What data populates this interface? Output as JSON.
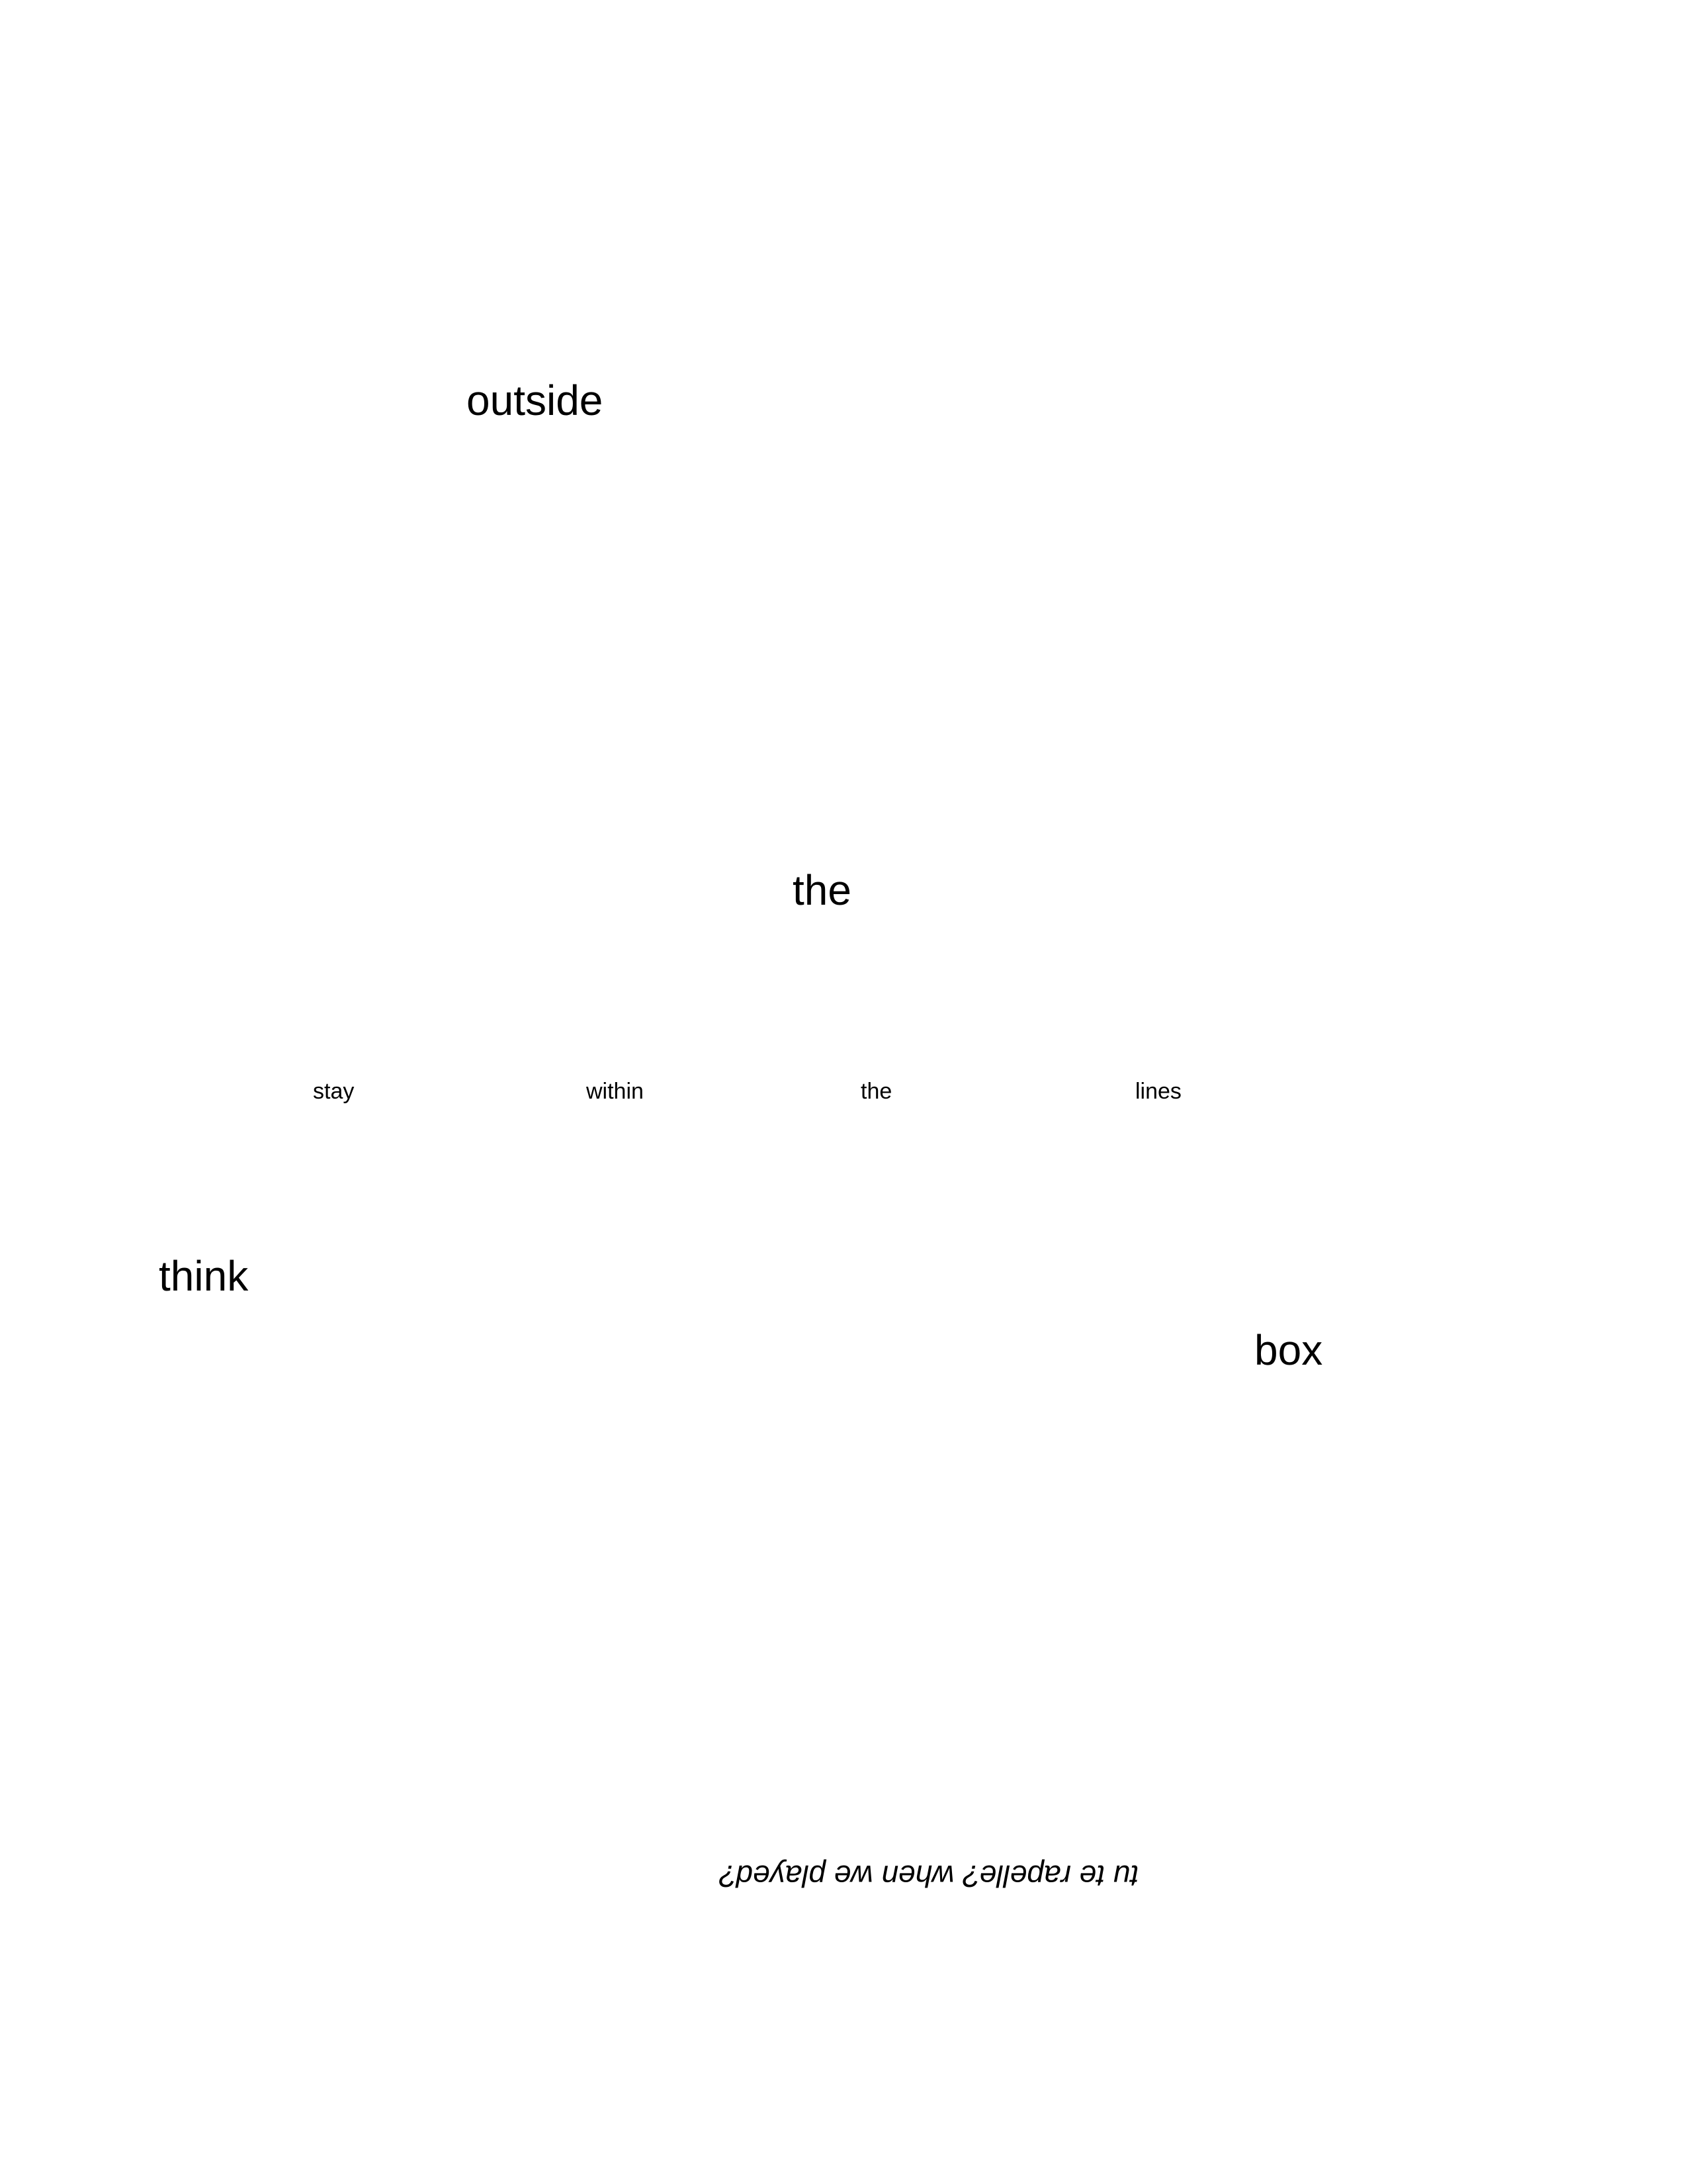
{
  "words": {
    "outside": "outside",
    "the_large": "the",
    "think": "think",
    "box": "box"
  },
  "line": {
    "stay": "stay",
    "within": "within",
    "the": "the",
    "lines": "lines"
  },
  "flipped_text": "tu te rapelle? when we played?",
  "colors": {
    "background": "#ffffff",
    "text": "#000000"
  }
}
